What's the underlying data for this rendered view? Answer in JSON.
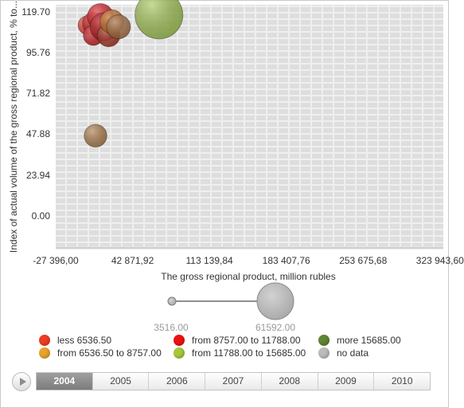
{
  "chart_data": {
    "type": "scatter",
    "xlabel": "The gross regional product, million rubles",
    "ylabel": "Index of actual volume of the gross regional product, % to...",
    "x_ticks": [
      "-27 396,00",
      "42 871,92",
      "113 139,84",
      "183 407,76",
      "253 675,68",
      "323 943,60"
    ],
    "x_tick_values": [
      -27396.0,
      42871.92,
      113139.84,
      183407.76,
      253675.68,
      323943.6
    ],
    "y_ticks": [
      "0.00",
      "23.94",
      "47.88",
      "71.82",
      "95.76",
      "119.70"
    ],
    "y_tick_values": [
      0.0,
      23.94,
      47.88,
      71.82,
      95.76,
      119.7
    ],
    "xlim": [
      -27396.0,
      327000
    ],
    "ylim": [
      -18,
      124
    ],
    "points": [
      {
        "x": 1500,
        "y": 112,
        "size": 6000,
        "color": "#e23a2a"
      },
      {
        "x": 7500,
        "y": 113,
        "size": 9000,
        "color": "#c8161c"
      },
      {
        "x": 7000,
        "y": 106,
        "size": 7000,
        "color": "#c8161c"
      },
      {
        "x": 13500,
        "y": 117,
        "size": 12000,
        "color": "#d6141a"
      },
      {
        "x": 17000,
        "y": 111,
        "size": 14000,
        "color": "#b50f15"
      },
      {
        "x": 21000,
        "y": 106,
        "size": 9000,
        "color": "#a52a1a"
      },
      {
        "x": 24000,
        "y": 114,
        "size": 10000,
        "color": "#c46a1a"
      },
      {
        "x": 30000,
        "y": 111,
        "size": 10000,
        "color": "#a36a3c"
      },
      {
        "x": 9000,
        "y": 47,
        "size": 9000,
        "color": "#a8743e"
      },
      {
        "x": 67000,
        "y": 118,
        "size": 40000,
        "color": "#9cbf4a"
      }
    ]
  },
  "size_legend": {
    "min_label": "3516.00",
    "max_label": "61592.00"
  },
  "legend": [
    {
      "label": "less 6536.50",
      "color": "#ee3d24"
    },
    {
      "label": "from 8757.00 to 11788.00",
      "color": "#ee1111"
    },
    {
      "label": "more 15685.00",
      "color": "#5e8732"
    },
    {
      "label": "from 6536.50 to 8757.00",
      "color": "#e8a32a"
    },
    {
      "label": "from 11788.00 to 15685.00",
      "color": "#a6c93a"
    },
    {
      "label": "no data",
      "color": "#bcbcbc"
    }
  ],
  "timeline": {
    "years": [
      "2004",
      "2005",
      "2006",
      "2007",
      "2008",
      "2009",
      "2010"
    ],
    "active": "2004"
  }
}
